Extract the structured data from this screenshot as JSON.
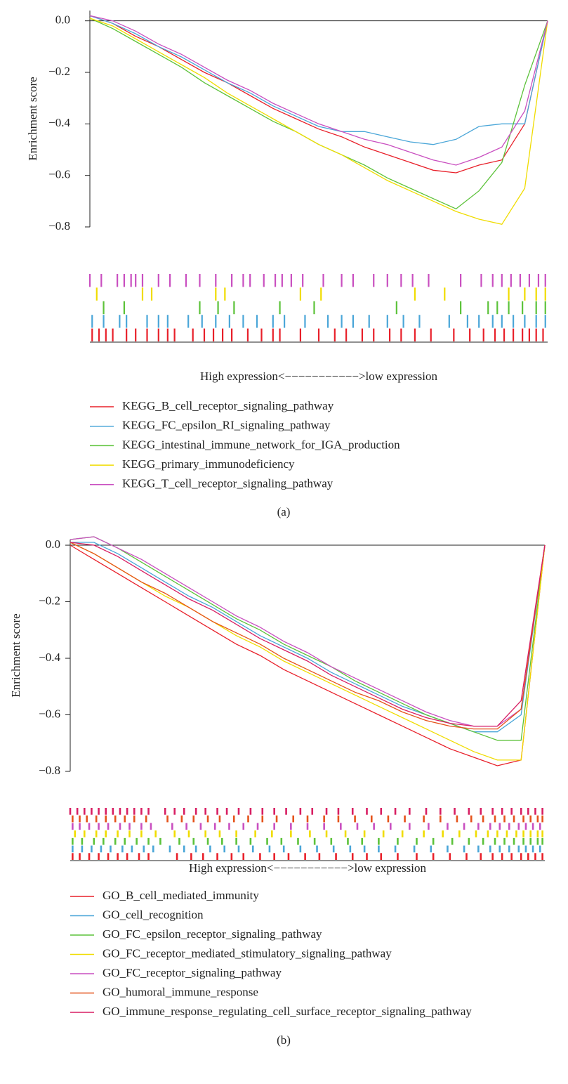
{
  "chart_data": [
    {
      "type": "line",
      "caption": "(a)",
      "ylabel": "Enrichment score",
      "xlabel": "High expression<−−−−−−−−−−−>low expression",
      "ylim": [
        -0.8,
        0.04
      ],
      "yticks": [
        {
          "value": 0,
          "label": "0.0"
        },
        {
          "value": -0.2,
          "label": "−0.2"
        },
        {
          "value": -0.4,
          "label": "−0.4"
        },
        {
          "value": -0.6,
          "label": "−0.6"
        },
        {
          "value": -0.8,
          "label": "−0.8"
        }
      ],
      "series": [
        {
          "name": "KEGG_B_cell_receptor_signaling_pathway",
          "color": "#e8202a",
          "values": [
            0.02,
            -0.01,
            -0.06,
            -0.1,
            -0.15,
            -0.2,
            -0.24,
            -0.29,
            -0.34,
            -0.38,
            -0.42,
            -0.45,
            -0.49,
            -0.52,
            -0.55,
            -0.58,
            -0.59,
            -0.56,
            -0.54,
            -0.4,
            0.0
          ],
          "hits": [
            0.1,
            0.4,
            0.7,
            1,
            1.6,
            2,
            2.5,
            3,
            3.4,
            3.7,
            4.5,
            5,
            5.4,
            5.8,
            6.2,
            6.9,
            7.5,
            8,
            8.3,
            9.2,
            10,
            10.7,
            11.2,
            11.9,
            12.4,
            13.1,
            13.6,
            14.2,
            14.9,
            15.9,
            16.6,
            17.2,
            17.7,
            18.1,
            18.5,
            18.9,
            19.2,
            19.5,
            19.8
          ]
        },
        {
          "name": "KEGG_FC_epsilon_RI_signaling_pathway",
          "color": "#4aa6d8",
          "values": [
            0.02,
            -0.01,
            -0.05,
            -0.1,
            -0.14,
            -0.19,
            -0.24,
            -0.28,
            -0.33,
            -0.37,
            -0.41,
            -0.43,
            -0.43,
            -0.45,
            -0.47,
            -0.48,
            -0.46,
            -0.41,
            -0.4,
            -0.4,
            0.0
          ],
          "hits": [
            0.1,
            0.6,
            1.3,
            1.6,
            2.5,
            3,
            3.4,
            4.3,
            4.9,
            5.5,
            6.1,
            6.7,
            7.3,
            8,
            8.5,
            9.4,
            10.4,
            11,
            11.5,
            12.2,
            13,
            13.7,
            14.4,
            15.7,
            16.5,
            17,
            17.6,
            18,
            18.5,
            19,
            19.5,
            19.9
          ]
        },
        {
          "name": "KEGG_intestinal_immune_network_for_IGA_production",
          "color": "#5cc23a",
          "values": [
            0.01,
            -0.03,
            -0.08,
            -0.13,
            -0.18,
            -0.24,
            -0.29,
            -0.34,
            -0.39,
            -0.43,
            -0.48,
            -0.52,
            -0.56,
            -0.61,
            -0.65,
            -0.69,
            -0.73,
            -0.66,
            -0.55,
            -0.25,
            0.0
          ],
          "hits": [
            0.6,
            1.5,
            4.8,
            5.6,
            6.3,
            8.3,
            9.8,
            13.4,
            16.2,
            17.4,
            17.8,
            18.3,
            18.9,
            19.5,
            19.9
          ]
        },
        {
          "name": "KEGG_primary_immunodeficiency",
          "color": "#f0dc00",
          "values": [
            0.01,
            -0.02,
            -0.07,
            -0.12,
            -0.17,
            -0.22,
            -0.28,
            -0.33,
            -0.38,
            -0.43,
            -0.48,
            -0.52,
            -0.57,
            -0.62,
            -0.66,
            -0.7,
            -0.74,
            -0.77,
            -0.79,
            -0.65,
            0.0
          ],
          "hits": [
            0.3,
            2.3,
            2.7,
            5.5,
            5.9,
            9.2,
            10.1,
            14.2,
            15.5,
            18.3,
            19,
            19.5,
            19.9
          ]
        },
        {
          "name": "KEGG_T_cell_receptor_signaling_pathway",
          "color": "#c94fc0",
          "values": [
            0.02,
            0.0,
            -0.04,
            -0.09,
            -0.13,
            -0.18,
            -0.23,
            -0.27,
            -0.32,
            -0.36,
            -0.4,
            -0.43,
            -0.46,
            -0.48,
            -0.51,
            -0.54,
            -0.56,
            -0.53,
            -0.49,
            -0.35,
            0.0
          ],
          "hits": [
            0,
            0.5,
            1.2,
            1.5,
            1.8,
            2,
            2.3,
            3,
            3.5,
            4.2,
            4.8,
            5.5,
            6.2,
            6.7,
            7,
            7.6,
            8.1,
            8.4,
            8.8,
            9.3,
            10.2,
            11,
            11.5,
            12.4,
            13,
            13.6,
            14.1,
            14.8,
            16.2,
            17.1,
            17.6,
            18,
            18.4,
            18.8,
            19.2,
            19.6,
            19.9
          ]
        }
      ]
    },
    {
      "type": "line",
      "caption": "(b)",
      "ylabel": "Enrichment score",
      "xlabel": "High expression<−−−−−−−−−−−>low expression",
      "ylim": [
        -0.8,
        0.02
      ],
      "yticks": [
        {
          "value": 0,
          "label": "0.0"
        },
        {
          "value": -0.2,
          "label": "−0.2"
        },
        {
          "value": -0.4,
          "label": "−0.4"
        },
        {
          "value": -0.6,
          "label": "−0.6"
        },
        {
          "value": -0.8,
          "label": "−0.8"
        }
      ],
      "series": [
        {
          "name": "GO_B_cell_mediated_immunity",
          "color": "#e8202a",
          "values": [
            0.0,
            -0.05,
            -0.1,
            -0.15,
            -0.2,
            -0.25,
            -0.3,
            -0.35,
            -0.39,
            -0.44,
            -0.48,
            -0.52,
            -0.56,
            -0.6,
            -0.64,
            -0.68,
            -0.72,
            -0.75,
            -0.78,
            -0.76,
            0.0
          ],
          "hits": [
            0.1,
            0.4,
            0.8,
            1.2,
            1.6,
            2,
            2.4,
            2.9,
            3.3,
            4.5,
            5.1,
            5.6,
            6.2,
            6.8,
            7.3,
            8,
            8.6,
            9.2,
            9.9,
            10.5,
            11.2,
            11.9,
            12.5,
            13.1,
            13.8,
            14.6,
            15.3,
            16,
            16.7,
            17.3,
            17.8,
            18.2,
            18.6,
            19,
            19.3,
            19.6,
            19.9
          ]
        },
        {
          "name": "GO_cell_recognition",
          "color": "#4aa6d8",
          "values": [
            0.01,
            0.01,
            -0.03,
            -0.08,
            -0.13,
            -0.18,
            -0.22,
            -0.27,
            -0.32,
            -0.36,
            -0.4,
            -0.45,
            -0.49,
            -0.53,
            -0.57,
            -0.6,
            -0.63,
            -0.66,
            -0.66,
            -0.6,
            0.0
          ],
          "hits": [
            0.1,
            0.5,
            0.9,
            1.3,
            1.7,
            2.2,
            2.6,
            3.1,
            3.5,
            4.2,
            4.8,
            5.3,
            5.9,
            6.5,
            7.1,
            7.7,
            8.4,
            9,
            9.7,
            10.4,
            11.1,
            11.8,
            12.4,
            13,
            13.7,
            14.5,
            15.2,
            15.9,
            16.6,
            17.2,
            17.7,
            18.1,
            18.5,
            18.9,
            19.2,
            19.5,
            19.8
          ]
        },
        {
          "name": "GO_FC_epsilon_receptor_signaling_pathway",
          "color": "#5cc23a",
          "values": [
            0.02,
            0.03,
            -0.01,
            -0.06,
            -0.11,
            -0.16,
            -0.21,
            -0.26,
            -0.3,
            -0.35,
            -0.39,
            -0.43,
            -0.48,
            -0.52,
            -0.56,
            -0.6,
            -0.63,
            -0.66,
            -0.69,
            -0.69,
            0.0
          ],
          "hits": [
            0.1,
            0.5,
            1,
            1.4,
            1.9,
            2.3,
            2.8,
            3.3,
            3.8,
            4.6,
            5.2,
            5.8,
            6.4,
            7,
            7.6,
            8.3,
            8.9,
            9.6,
            10.3,
            11,
            11.7,
            12.3,
            13,
            13.8,
            14.6,
            15.3,
            16.1,
            16.8,
            17.4,
            17.9,
            18.3,
            18.7,
            19.1,
            19.4,
            19.7,
            19.9
          ]
        },
        {
          "name": "GO_FC_receptor_mediated_stimulatory_signaling_pathway",
          "color": "#f0dc00",
          "values": [
            0.01,
            -0.03,
            -0.08,
            -0.13,
            -0.18,
            -0.22,
            -0.27,
            -0.32,
            -0.36,
            -0.41,
            -0.45,
            -0.49,
            -0.53,
            -0.57,
            -0.61,
            -0.65,
            -0.69,
            -0.73,
            -0.76,
            -0.76,
            0.0
          ],
          "hits": [
            0.2,
            0.6,
            1.1,
            1.5,
            2,
            2.5,
            3,
            3.6,
            4.4,
            5,
            5.7,
            6.3,
            7,
            7.8,
            8.5,
            9.3,
            10.1,
            10.8,
            11.6,
            12.4,
            13.2,
            14,
            14.9,
            15.7,
            16.4,
            17.1,
            17.6,
            18,
            18.4,
            18.8,
            19.1,
            19.4,
            19.7,
            19.9
          ]
        },
        {
          "name": "GO_FC_receptor_signaling_pathway",
          "color": "#c94fc0",
          "values": [
            0.02,
            0.03,
            -0.01,
            -0.05,
            -0.1,
            -0.15,
            -0.2,
            -0.25,
            -0.29,
            -0.34,
            -0.38,
            -0.43,
            -0.47,
            -0.51,
            -0.55,
            -0.59,
            -0.62,
            -0.64,
            -0.64,
            -0.58,
            0.0
          ],
          "hits": [
            0.1,
            0.4,
            0.8,
            1.2,
            1.6,
            2.1,
            2.5,
            3,
            3.4,
            4.3,
            4.9,
            5.5,
            6.1,
            6.7,
            7.3,
            7.9,
            8.6,
            9.3,
            10,
            10.7,
            11.4,
            12.1,
            12.8,
            13.5,
            14.3,
            15.1,
            15.9,
            16.6,
            17.2,
            17.7,
            18.1,
            18.5,
            18.9,
            19.2,
            19.5,
            19.8
          ]
        },
        {
          "name": "GO_humoral_immune_response",
          "color": "#e5531b",
          "values": [
            0.01,
            -0.03,
            -0.08,
            -0.13,
            -0.17,
            -0.22,
            -0.27,
            -0.31,
            -0.35,
            -0.4,
            -0.44,
            -0.48,
            -0.52,
            -0.55,
            -0.59,
            -0.62,
            -0.64,
            -0.65,
            -0.65,
            -0.58,
            0.0
          ],
          "hits": [
            0.1,
            0.4,
            0.7,
            1.1,
            1.5,
            1.9,
            2.3,
            2.7,
            3.2,
            4.1,
            4.7,
            5.2,
            5.8,
            6.3,
            6.9,
            7.5,
            8.1,
            8.7,
            9.4,
            10,
            10.7,
            11.3,
            12,
            12.7,
            13.4,
            14.1,
            14.9,
            15.6,
            16.3,
            16.9,
            17.4,
            17.9,
            18.3,
            18.7,
            19.1,
            19.4,
            19.7,
            19.9
          ]
        },
        {
          "name": "GO_immune_response_regulating_cell_surface_receptor_signaling_pathway",
          "color": "#d81f63",
          "values": [
            0.01,
            0.0,
            -0.04,
            -0.09,
            -0.14,
            -0.19,
            -0.23,
            -0.28,
            -0.33,
            -0.37,
            -0.41,
            -0.46,
            -0.5,
            -0.54,
            -0.58,
            -0.61,
            -0.63,
            -0.64,
            -0.64,
            -0.55,
            0.0
          ],
          "hits": [
            0,
            0.3,
            0.6,
            0.9,
            1.2,
            1.5,
            1.8,
            2.1,
            2.4,
            2.7,
            3,
            3.3,
            4,
            4.4,
            4.8,
            5.3,
            5.7,
            6.2,
            6.6,
            7.1,
            7.6,
            8.1,
            8.6,
            9.1,
            9.7,
            10.2,
            10.8,
            11.3,
            11.9,
            12.5,
            13.1,
            13.7,
            14.3,
            15,
            15.6,
            16.2,
            16.8,
            17.3,
            17.8,
            18.2,
            18.6,
            19,
            19.3,
            19.6,
            19.9
          ]
        }
      ]
    }
  ]
}
